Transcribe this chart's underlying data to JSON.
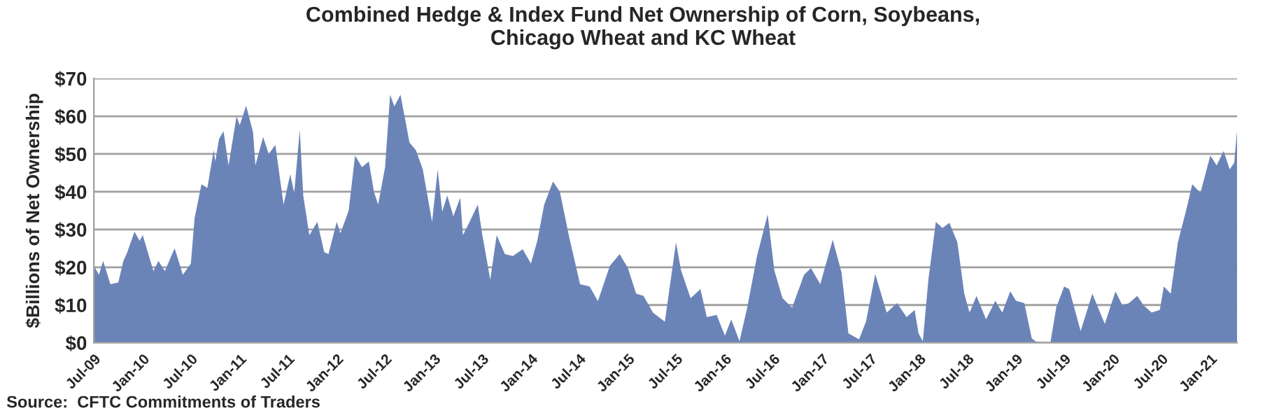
{
  "chart_data": {
    "type": "area",
    "title": "Combined Hedge & Index Fund Net Ownership of Corn, Soybeans,\nChicago Wheat and KC Wheat",
    "ylabel": "$Billions of Net Ownership",
    "annotations": [
      "Source:  CFTC Commitments of Traders"
    ],
    "x": [
      "2009-07-01",
      "2009-07-20",
      "2009-08-05",
      "2009-09-01",
      "2009-10-01",
      "2009-10-20",
      "2009-11-01",
      "2009-12-01",
      "2009-12-20",
      "2010-01-01",
      "2010-02-10",
      "2010-03-01",
      "2010-03-25",
      "2010-05-01",
      "2010-06-01",
      "2010-07-01",
      "2010-07-15",
      "2010-08-10",
      "2010-09-01",
      "2010-09-25",
      "2010-10-01",
      "2010-10-15",
      "2010-11-01",
      "2010-11-20",
      "2010-12-20",
      "2011-01-01",
      "2011-01-25",
      "2011-02-20",
      "2011-03-01",
      "2011-03-30",
      "2011-04-20",
      "2011-05-15",
      "2011-06-15",
      "2011-07-10",
      "2011-07-25",
      "2011-08-15",
      "2011-08-28",
      "2011-09-20",
      "2011-10-20",
      "2011-11-15",
      "2011-12-01",
      "2012-01-01",
      "2012-01-15",
      "2012-02-15",
      "2012-03-10",
      "2012-04-05",
      "2012-05-01",
      "2012-05-20",
      "2012-06-05",
      "2012-07-01",
      "2012-07-20",
      "2012-08-05",
      "2012-08-28",
      "2012-10-01",
      "2012-10-25",
      "2012-11-20",
      "2012-12-25",
      "2013-01-15",
      "2013-02-01",
      "2013-02-20",
      "2013-03-15",
      "2013-04-10",
      "2013-04-20",
      "2013-05-15",
      "2013-06-15",
      "2013-07-01",
      "2013-08-01",
      "2013-08-25",
      "2013-09-25",
      "2013-10-25",
      "2013-12-01",
      "2014-01-01",
      "2014-01-25",
      "2014-02-20",
      "2014-03-25",
      "2014-04-20",
      "2014-05-25",
      "2014-07-05",
      "2014-08-10",
      "2014-09-10",
      "2014-10-25",
      "2014-12-01",
      "2015-01-01",
      "2015-02-01",
      "2015-03-01",
      "2015-04-05",
      "2015-05-20",
      "2015-07-01",
      "2015-07-20",
      "2015-08-25",
      "2015-10-01",
      "2015-10-25",
      "2015-12-01",
      "2016-01-01",
      "2016-01-25",
      "2016-02-25",
      "2016-03-25",
      "2016-05-01",
      "2016-06-10",
      "2016-07-05",
      "2016-08-05",
      "2016-09-10",
      "2016-10-25",
      "2016-11-20",
      "2016-12-25",
      "2017-02-10",
      "2017-03-15",
      "2017-04-10",
      "2017-05-20",
      "2017-06-15",
      "2017-07-20",
      "2017-09-01",
      "2017-10-10",
      "2017-11-15",
      "2017-12-15",
      "2017-12-30",
      "2018-01-15",
      "2018-02-05",
      "2018-03-05",
      "2018-03-30",
      "2018-04-25",
      "2018-05-25",
      "2018-06-20",
      "2018-07-10",
      "2018-08-05",
      "2018-09-10",
      "2018-10-15",
      "2018-11-10",
      "2018-12-10",
      "2019-01-01",
      "2019-02-01",
      "2019-03-01",
      "2019-03-15",
      "2019-04-10",
      "2019-05-10",
      "2019-06-01",
      "2019-07-01",
      "2019-07-20",
      "2019-09-01",
      "2019-10-15",
      "2019-12-01",
      "2020-01-10",
      "2020-02-05",
      "2020-03-01",
      "2020-04-01",
      "2020-04-25",
      "2020-05-25",
      "2020-06-25",
      "2020-07-10",
      "2020-08-05",
      "2020-09-01",
      "2020-10-05",
      "2020-10-25",
      "2020-11-25",
      "2021-01-01",
      "2021-01-25",
      "2021-02-20",
      "2021-03-15",
      "2021-04-01",
      "2021-04-12"
    ],
    "values": [
      20.4,
      18,
      21.7,
      15.5,
      16,
      21.7,
      23.5,
      29.4,
      27,
      28.5,
      19,
      21.7,
      19,
      25,
      18,
      21,
      33,
      42,
      41,
      51,
      48,
      54,
      56,
      47,
      60,
      57.6,
      62.8,
      55.8,
      47,
      54.5,
      50,
      52.4,
      36.6,
      44.6,
      39.7,
      56.4,
      39,
      28.5,
      32,
      24,
      23.5,
      32,
      29,
      35,
      49.6,
      46.5,
      48,
      40,
      36.6,
      46.5,
      65.7,
      62.6,
      65.7,
      53,
      51,
      45.9,
      32,
      45.9,
      34.7,
      39,
      33.5,
      38.4,
      28.5,
      32,
      36.6,
      29,
      16.7,
      28.5,
      23.5,
      23,
      24.8,
      21,
      27,
      36.6,
      42.7,
      40,
      28,
      15.5,
      14.9,
      11,
      20.4,
      23.5,
      19.8,
      13,
      12.4,
      8,
      5.6,
      26.6,
      19.2,
      11.8,
      14.2,
      6.8,
      7.4,
      1.9,
      6.2,
      0.4,
      9.3,
      23,
      34,
      19.2,
      11.8,
      9.3,
      18,
      19.8,
      15.5,
      27.3,
      18.6,
      2.5,
      0.9,
      5.6,
      18.2,
      8,
      10.5,
      6.8,
      8.7,
      2.5,
      0.4,
      16.7,
      32,
      30.4,
      31.8,
      26.6,
      13,
      8,
      12.4,
      6.2,
      11.1,
      8,
      13.6,
      11.1,
      10.5,
      1.2,
      0.4,
      0,
      0,
      9.3,
      14.9,
      14.2,
      3.1,
      13,
      5,
      13.6,
      9.9,
      10.5,
      12.4,
      9.9,
      8,
      8.7,
      14.9,
      13,
      26.6,
      35.9,
      42,
      39.7,
      49.6,
      47,
      50.8,
      45.9,
      47.7,
      56.4
    ],
    "color": "#6b84b8",
    "xlim": [
      "2009-07-01",
      "2021-04-12"
    ],
    "xticks": [
      {
        "value": "2009-07",
        "label": "Jul-09"
      },
      {
        "value": "2010-01",
        "label": "Jan-10"
      },
      {
        "value": "2010-07",
        "label": "Jul-10"
      },
      {
        "value": "2011-01",
        "label": "Jan-11"
      },
      {
        "value": "2011-07",
        "label": "Jul-11"
      },
      {
        "value": "2012-01",
        "label": "Jan-12"
      },
      {
        "value": "2012-07",
        "label": "Jul-12"
      },
      {
        "value": "2013-01",
        "label": "Jan-13"
      },
      {
        "value": "2013-07",
        "label": "Jul-13"
      },
      {
        "value": "2014-01",
        "label": "Jan-14"
      },
      {
        "value": "2014-07",
        "label": "Jul-14"
      },
      {
        "value": "2015-01",
        "label": "Jan-15"
      },
      {
        "value": "2015-07",
        "label": "Jul-15"
      },
      {
        "value": "2016-01",
        "label": "Jan-16"
      },
      {
        "value": "2016-07",
        "label": "Jul-16"
      },
      {
        "value": "2017-01",
        "label": "Jan-17"
      },
      {
        "value": "2017-07",
        "label": "Jul-17"
      },
      {
        "value": "2018-01",
        "label": "Jan-18"
      },
      {
        "value": "2018-07",
        "label": "Jul-18"
      },
      {
        "value": "2019-01",
        "label": "Jan-19"
      },
      {
        "value": "2019-07",
        "label": "Jul-19"
      },
      {
        "value": "2020-01",
        "label": "Jan-20"
      },
      {
        "value": "2020-07",
        "label": "Jul-20"
      },
      {
        "value": "2021-01",
        "label": "Jan-21"
      }
    ],
    "ylim": [
      0,
      70
    ],
    "yticks": [
      {
        "value": 0,
        "label": "$0"
      },
      {
        "value": 10,
        "label": "$10"
      },
      {
        "value": 20,
        "label": "$20"
      },
      {
        "value": 30,
        "label": "$30"
      },
      {
        "value": 40,
        "label": "$40"
      },
      {
        "value": 50,
        "label": "$50"
      },
      {
        "value": 60,
        "label": "$60"
      },
      {
        "value": 70,
        "label": "$70"
      }
    ],
    "grid": "y",
    "legend": false
  }
}
